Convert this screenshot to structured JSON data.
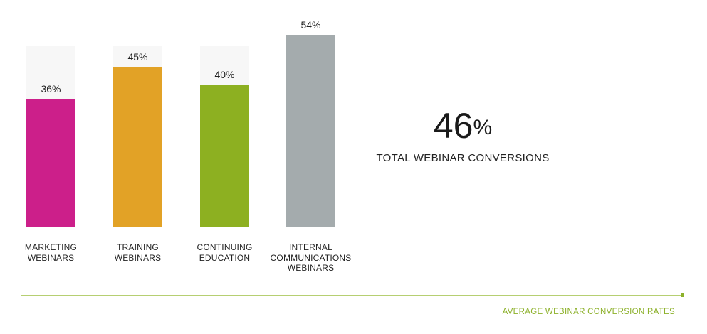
{
  "chart_data": {
    "type": "bar",
    "categories": [
      "MARKETING\nWEBINARS",
      "TRAINING\nWEBINARS",
      "CONTINUING\nEDUCATION",
      "INTERNAL\nCOMMUNICATIONS\nWEBINARS"
    ],
    "values": [
      36,
      45,
      40,
      54
    ],
    "value_labels": [
      "36%",
      "45%",
      "40%",
      "54%"
    ],
    "colors": [
      "#cc1f8a",
      "#e2a226",
      "#8db021",
      "#a4abad"
    ],
    "track_color": "#f7f7f7",
    "ylim": [
      0,
      100
    ],
    "grid": false,
    "legend": "none"
  },
  "summary": {
    "value": "46",
    "unit": "%",
    "caption": "TOTAL WEBINAR CONVERSIONS"
  },
  "footer": {
    "text": "AVERAGE WEBINAR CONVERSION RATES",
    "accent": "#8db12b"
  }
}
